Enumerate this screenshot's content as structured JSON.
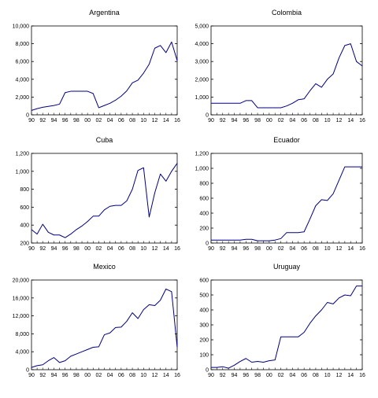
{
  "figure": {
    "background": "#ffffff",
    "line_color": "#000080",
    "axis_color": "#000000"
  },
  "chart_data": [
    {
      "type": "line",
      "title": "Argentina",
      "x": [
        1990,
        1991,
        1992,
        1993,
        1994,
        1995,
        1996,
        1997,
        1998,
        1999,
        2000,
        2001,
        2002,
        2003,
        2004,
        2005,
        2006,
        2007,
        2008,
        2009,
        2010,
        2011,
        2012,
        2013,
        2014,
        2015,
        2016
      ],
      "values": [
        500,
        700,
        850,
        950,
        1050,
        1200,
        2500,
        2650,
        2650,
        2650,
        2650,
        2400,
        800,
        1050,
        1300,
        1650,
        2100,
        2700,
        3600,
        3900,
        4700,
        5700,
        7500,
        7800,
        7000,
        8200,
        6100
      ],
      "ylim": [
        0,
        10000
      ],
      "yticks": [
        0,
        2000,
        4000,
        6000,
        8000,
        10000
      ],
      "ytick_labels": [
        "0",
        "2,000",
        "4,000",
        "6,000",
        "8,000",
        "10,000"
      ]
    },
    {
      "type": "line",
      "title": "Colombia",
      "x": [
        1990,
        1991,
        1992,
        1993,
        1994,
        1995,
        1996,
        1997,
        1998,
        1999,
        2000,
        2001,
        2002,
        2003,
        2004,
        2005,
        2006,
        2007,
        2008,
        2009,
        2010,
        2011,
        2012,
        2013,
        2014,
        2015,
        2016
      ],
      "values": [
        650,
        650,
        650,
        650,
        650,
        650,
        800,
        800,
        400,
        400,
        400,
        400,
        400,
        500,
        650,
        850,
        900,
        1350,
        1750,
        1550,
        2000,
        2300,
        3200,
        3900,
        4000,
        3000,
        2750
      ],
      "ylim": [
        0,
        5000
      ],
      "yticks": [
        0,
        1000,
        2000,
        3000,
        4000,
        5000
      ],
      "ytick_labels": [
        "0",
        "1,000",
        "2,000",
        "3,000",
        "4,000",
        "5,000"
      ]
    },
    {
      "type": "line",
      "title": "Cuba",
      "x": [
        1990,
        1991,
        1992,
        1993,
        1994,
        1995,
        1996,
        1997,
        1998,
        1999,
        2000,
        2001,
        2002,
        2003,
        2004,
        2005,
        2006,
        2007,
        2008,
        2009,
        2010,
        2011,
        2012,
        2013,
        2014,
        2015,
        2016
      ],
      "values": [
        350,
        300,
        410,
        320,
        290,
        290,
        260,
        300,
        350,
        390,
        440,
        500,
        500,
        570,
        610,
        620,
        620,
        670,
        800,
        1010,
        1040,
        490,
        760,
        970,
        890,
        1000,
        1090
      ],
      "ylim": [
        200,
        1200
      ],
      "yticks": [
        200,
        400,
        600,
        800,
        1000,
        1200
      ],
      "ytick_labels": [
        "200",
        "400",
        "600",
        "800",
        "1,000",
        "1,200"
      ]
    },
    {
      "type": "line",
      "title": "Ecuador",
      "x": [
        1990,
        1991,
        1992,
        1993,
        1994,
        1995,
        1996,
        1997,
        1998,
        1999,
        2000,
        2001,
        2002,
        2003,
        2004,
        2005,
        2006,
        2007,
        2008,
        2009,
        2010,
        2011,
        2012,
        2013,
        2014,
        2015,
        2016
      ],
      "values": [
        40,
        40,
        40,
        40,
        40,
        40,
        50,
        50,
        30,
        30,
        30,
        40,
        60,
        140,
        140,
        140,
        150,
        320,
        500,
        580,
        570,
        660,
        840,
        1020,
        1020,
        1020,
        1020
      ],
      "ylim": [
        0,
        1200
      ],
      "yticks": [
        0,
        200,
        400,
        600,
        800,
        1000,
        1200
      ],
      "ytick_labels": [
        "0",
        "200",
        "400",
        "600",
        "800",
        "1,000",
        "1,200"
      ]
    },
    {
      "type": "line",
      "title": "Mexico",
      "x": [
        1990,
        1991,
        1992,
        1993,
        1994,
        1995,
        1996,
        1997,
        1998,
        1999,
        2000,
        2001,
        2002,
        2003,
        2004,
        2005,
        2006,
        2007,
        2008,
        2009,
        2010,
        2011,
        2012,
        2013,
        2014,
        2015,
        2016
      ],
      "values": [
        500,
        900,
        1100,
        2000,
        2700,
        1600,
        2000,
        3000,
        3500,
        4000,
        4500,
        5000,
        5100,
        7800,
        8200,
        9400,
        9500,
        10800,
        12700,
        11400,
        13400,
        14500,
        14300,
        15500,
        18000,
        17400,
        5000
      ],
      "ylim": [
        0,
        20000
      ],
      "yticks": [
        0,
        4000,
        8000,
        12000,
        16000,
        20000
      ],
      "ytick_labels": [
        "0",
        "4,000",
        "8,000",
        "12,000",
        "16,000",
        "20,000"
      ]
    },
    {
      "type": "line",
      "title": "Uruguay",
      "x": [
        1990,
        1991,
        1992,
        1993,
        1994,
        1995,
        1996,
        1997,
        1998,
        1999,
        2000,
        2001,
        2002,
        2003,
        2004,
        2005,
        2006,
        2007,
        2008,
        2009,
        2010,
        2011,
        2012,
        2013,
        2014,
        2015,
        2016
      ],
      "values": [
        15,
        15,
        20,
        10,
        30,
        55,
        75,
        50,
        55,
        50,
        60,
        65,
        220,
        220,
        220,
        220,
        250,
        310,
        360,
        400,
        450,
        440,
        480,
        500,
        495,
        560,
        560
      ],
      "ylim": [
        0,
        600
      ],
      "yticks": [
        0,
        100,
        200,
        300,
        400,
        500,
        600
      ],
      "ytick_labels": [
        "0",
        "100",
        "200",
        "300",
        "400",
        "500",
        "600"
      ]
    }
  ],
  "x_axis": {
    "tick_years": [
      1990,
      1992,
      1994,
      1996,
      1998,
      2000,
      2002,
      2004,
      2006,
      2008,
      2010,
      2012,
      2014,
      2016
    ],
    "tick_labels": [
      "90",
      "92",
      "94",
      "96",
      "98",
      "00",
      "02",
      "04",
      "06",
      "08",
      "10",
      "12",
      "14",
      "16"
    ]
  }
}
